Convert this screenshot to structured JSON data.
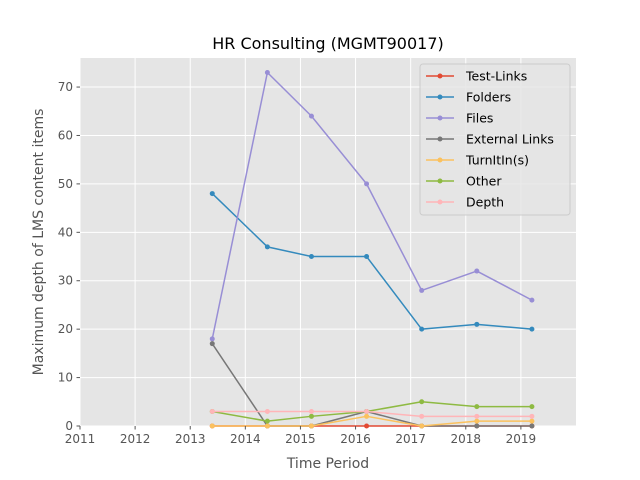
{
  "chart_data": {
    "type": "line",
    "title": "HR Consulting (MGMT90017)",
    "xlabel": "Time Period",
    "ylabel": "Maximum depth of LMS content items",
    "xlim": [
      2011,
      2020
    ],
    "ylim": [
      0,
      76
    ],
    "xticks": [
      "2011",
      "2012",
      "2013",
      "2014",
      "2015",
      "2016",
      "2017",
      "2018",
      "2019"
    ],
    "yticks": [
      "0",
      "10",
      "20",
      "30",
      "40",
      "50",
      "60",
      "70"
    ],
    "grid": true,
    "legend_position": "top-right",
    "x": [
      2013.4,
      2014.4,
      2015.2,
      2016.2,
      2017.2,
      2018.2,
      2019.2
    ],
    "series": [
      {
        "name": "Test-Links",
        "color": "#e24a33",
        "values": [
          0,
          0,
          0,
          0,
          0,
          0,
          0
        ]
      },
      {
        "name": "Folders",
        "color": "#348abd",
        "values": [
          48,
          37,
          35,
          35,
          20,
          21,
          20
        ]
      },
      {
        "name": "Files",
        "color": "#988ed5",
        "values": [
          18,
          73,
          64,
          50,
          28,
          32,
          26
        ]
      },
      {
        "name": "External Links",
        "color": "#777777",
        "values": [
          17,
          0,
          0,
          3,
          0,
          0,
          0
        ]
      },
      {
        "name": "TurnItIn(s)",
        "color": "#fbc15e",
        "values": [
          0,
          0,
          0,
          2,
          0,
          1,
          1
        ]
      },
      {
        "name": "Other",
        "color": "#8eba42",
        "values": [
          3,
          1,
          2,
          3,
          5,
          4,
          4
        ]
      },
      {
        "name": "Depth",
        "color": "#ffb5b8",
        "values": [
          3,
          3,
          3,
          3,
          2,
          2,
          2
        ]
      }
    ]
  }
}
